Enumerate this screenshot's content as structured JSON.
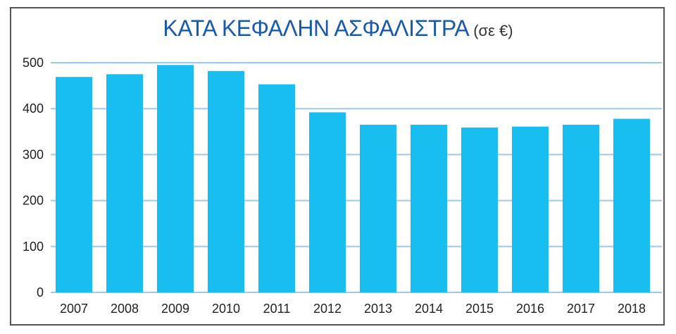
{
  "chart_data": {
    "type": "bar",
    "title": "ΚΑΤΑ ΚΕΦΑΛΗΝ ΑΣΦΑΛΙΣΤΡΑ",
    "subtitle": "(σε €)",
    "categories": [
      "2007",
      "2008",
      "2009",
      "2010",
      "2011",
      "2012",
      "2013",
      "2014",
      "2015",
      "2016",
      "2017",
      "2018"
    ],
    "values": [
      469,
      475,
      495,
      482,
      453,
      392,
      365,
      365,
      359,
      361,
      365,
      378
    ],
    "ylim": [
      0,
      500
    ],
    "yticks": [
      0,
      100,
      200,
      300,
      400,
      500
    ],
    "ytick_labels": [
      "0",
      "100",
      "200",
      "300",
      "400",
      "500"
    ],
    "grid": true,
    "bar_color": "#18bef0",
    "grid_color": "#9ec9ee",
    "title_color": "#1a5aa8"
  }
}
